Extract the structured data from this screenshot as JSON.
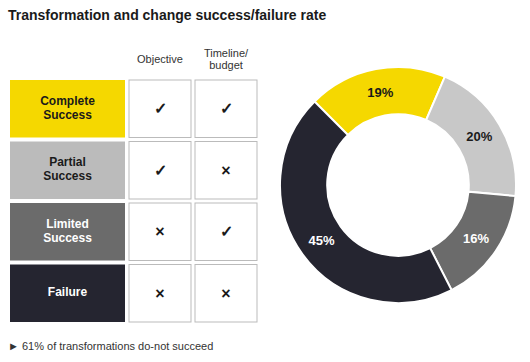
{
  "chart_data": [
    {
      "type": "table",
      "title": "Transformation and change success/failure rate",
      "columns": [
        "Objective",
        "Timeline/\nbudget"
      ],
      "rows": [
        {
          "label": "Complete\nSuccess",
          "color": "#F5D800",
          "text_color": "#1a1a1a",
          "values": [
            "✓",
            "✓"
          ]
        },
        {
          "label": "Partial\nSuccess",
          "color": "#BBBBBB",
          "text_color": "#1a1a1a",
          "values": [
            "✓",
            "×"
          ]
        },
        {
          "label": "Limited\nSuccess",
          "color": "#6B6B6B",
          "text_color": "#ffffff",
          "values": [
            "×",
            "✓"
          ]
        },
        {
          "label": "Failure",
          "color": "#252530",
          "text_color": "#ffffff",
          "values": [
            "×",
            "×"
          ]
        }
      ],
      "annotation": "►  61% of transformations do-not succeed"
    },
    {
      "type": "pie",
      "values": [
        19,
        20,
        16,
        45
      ],
      "value_labels": [
        "19%",
        "20%",
        "16%",
        "45%"
      ],
      "colors": [
        "#F5D800",
        "#C8C8C8",
        "#6B6B6B",
        "#252530"
      ],
      "label_colors": [
        "#1a1a1a",
        "#1a1a1a",
        "#ffffff",
        "#333333"
      ],
      "data_labels": true
    }
  ]
}
